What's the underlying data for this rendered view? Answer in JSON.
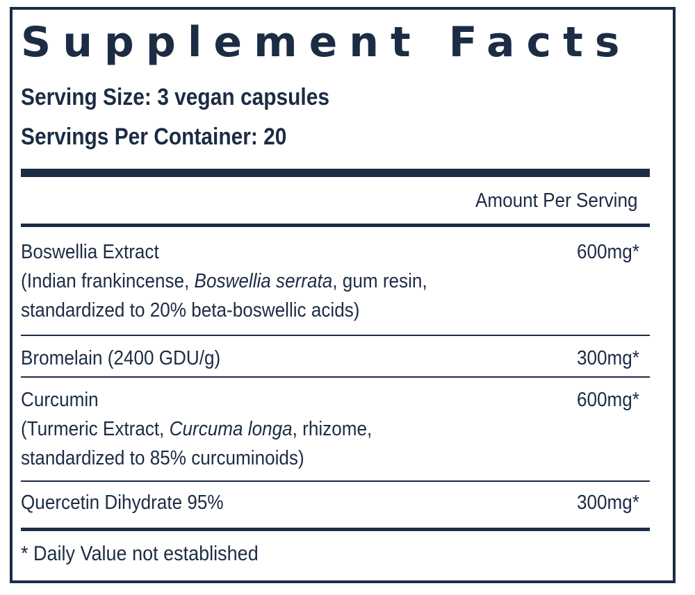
{
  "label": {
    "title": "Supplement Facts",
    "serving_size": "Serving Size: 3 vegan capsules",
    "servings_per_container": "Servings Per Container: 20",
    "amount_header": "Amount Per Serving",
    "footnote": "* Daily Value not established"
  },
  "ingredients": [
    {
      "name": "Boswellia Extract",
      "detail_1_a": "(Indian frankincense, ",
      "detail_1_italic": "Boswellia serrata",
      "detail_1_b": ", gum resin,",
      "detail_2": "standardized to 20% beta-boswellic acids)",
      "amount": "600mg*"
    },
    {
      "name": "Bromelain (2400 GDU/g)",
      "amount": "300mg*"
    },
    {
      "name": "Curcumin",
      "detail_1_a": "(Turmeric Extract, ",
      "detail_1_italic": "Curcuma longa",
      "detail_1_b": ", rhizome,",
      "detail_2": "standardized to 85% curcuminoids)",
      "amount": "600mg*"
    },
    {
      "name": "Quercetin Dihydrate 95%",
      "amount": "300mg*"
    }
  ],
  "colors": {
    "ink": "#1c2c44",
    "background": "#ffffff"
  }
}
